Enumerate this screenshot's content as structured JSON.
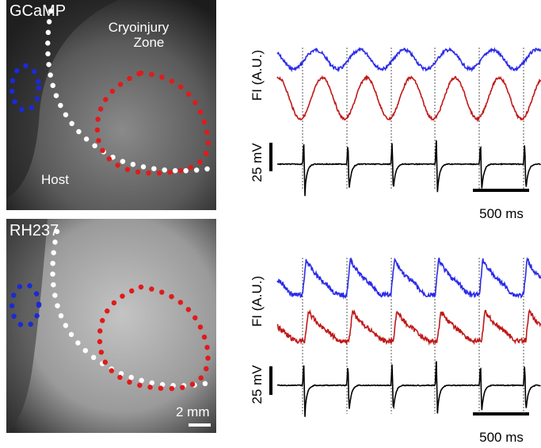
{
  "panels": [
    {
      "image_label": "GCaMP",
      "zone_label": [
        "Cryoinjury",
        "Zone"
      ],
      "host_label": "Host",
      "fi_label": "FI (A.U.)",
      "voltage_label": "25 mV",
      "time_label": "500 ms"
    },
    {
      "image_label": "RH237",
      "scale_label": "2 mm",
      "fi_label": "FI (A.U.)",
      "voltage_label": "25 mV",
      "time_label": "500 ms"
    }
  ]
}
